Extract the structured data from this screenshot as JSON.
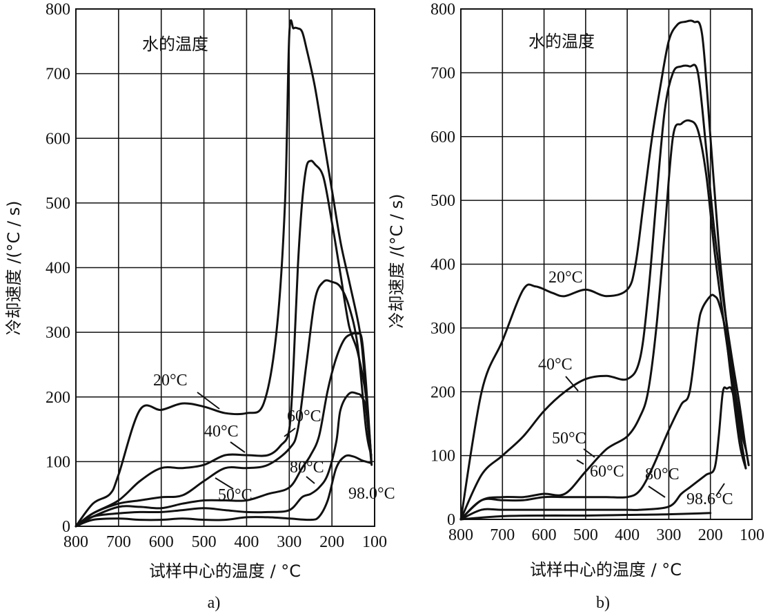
{
  "chart_data": [
    {
      "type": "line",
      "panel_label": "a)",
      "annotation": "水的温度",
      "xlabel": "试样中心的温度 / °C",
      "ylabel": "冷却速度 /(°C / s)",
      "xlim": [
        800,
        100
      ],
      "ylim": [
        0,
        800
      ],
      "xticks": [
        800,
        700,
        600,
        500,
        400,
        300,
        200,
        100
      ],
      "yticks": [
        0,
        100,
        200,
        300,
        400,
        500,
        600,
        700,
        800
      ],
      "series": [
        {
          "name": "20°C",
          "x": [
            800,
            760,
            720,
            700,
            650,
            600,
            550,
            500,
            450,
            400,
            360,
            330,
            310,
            300,
            290,
            280,
            270,
            260,
            240,
            220,
            200,
            180,
            160,
            140,
            130,
            120,
            112,
            107
          ],
          "y": [
            0,
            35,
            50,
            80,
            180,
            180,
            190,
            185,
            175,
            175,
            190,
            300,
            500,
            760,
            770,
            770,
            765,
            740,
            680,
            600,
            520,
            440,
            380,
            320,
            280,
            200,
            140,
            95
          ]
        },
        {
          "name": "40°C",
          "x": [
            800,
            760,
            700,
            650,
            600,
            550,
            500,
            450,
            400,
            350,
            320,
            300,
            290,
            280,
            270,
            260,
            250,
            240,
            220,
            200,
            180,
            160,
            140,
            120,
            108
          ],
          "y": [
            0,
            20,
            40,
            70,
            90,
            90,
            95,
            110,
            110,
            110,
            125,
            150,
            250,
            400,
            500,
            555,
            565,
            560,
            540,
            470,
            390,
            310,
            270,
            200,
            105
          ]
        },
        {
          "name": "50°C",
          "x": [
            800,
            760,
            700,
            650,
            600,
            550,
            500,
            450,
            400,
            350,
            300,
            280,
            260,
            240,
            220,
            200,
            180,
            160,
            140,
            120,
            108
          ],
          "y": [
            0,
            20,
            35,
            40,
            45,
            48,
            70,
            90,
            90,
            95,
            120,
            150,
            250,
            350,
            378,
            378,
            370,
            340,
            280,
            150,
            110
          ]
        },
        {
          "name": "60°C",
          "x": [
            800,
            760,
            700,
            650,
            600,
            550,
            500,
            450,
            400,
            350,
            300,
            270,
            250,
            230,
            210,
            190,
            170,
            150,
            140,
            130,
            120,
            108
          ],
          "y": [
            0,
            15,
            30,
            30,
            28,
            35,
            40,
            40,
            40,
            50,
            60,
            90,
            110,
            140,
            210,
            260,
            290,
            298,
            298,
            290,
            220,
            105
          ]
        },
        {
          "name": "80°C",
          "x": [
            800,
            760,
            700,
            650,
            600,
            550,
            500,
            450,
            400,
            350,
            300,
            270,
            250,
            230,
            210,
            190,
            180,
            160,
            140,
            130,
            120,
            108
          ],
          "y": [
            0,
            15,
            20,
            22,
            22,
            25,
            28,
            25,
            22,
            22,
            25,
            45,
            50,
            60,
            80,
            130,
            180,
            205,
            205,
            200,
            180,
            100
          ]
        },
        {
          "name": "98.0°C",
          "x": [
            800,
            760,
            700,
            650,
            600,
            550,
            500,
            450,
            400,
            350,
            300,
            250,
            230,
            210,
            190,
            170,
            150,
            130,
            120,
            110
          ],
          "y": [
            0,
            10,
            12,
            10,
            10,
            12,
            10,
            10,
            14,
            14,
            12,
            10,
            15,
            40,
            90,
            108,
            108,
            102,
            100,
            98
          ]
        }
      ],
      "labels": [
        "20°C",
        "40°C",
        "50°C",
        "60°C",
        "80°C",
        "98.0°C"
      ]
    },
    {
      "type": "line",
      "panel_label": "b)",
      "annotation": "水的温度",
      "xlabel": "试样中心的温度 / °C",
      "ylabel": "冷却速度 /(°C / s)",
      "xlim": [
        800,
        100
      ],
      "ylim": [
        0,
        800
      ],
      "xticks": [
        800,
        700,
        600,
        500,
        400,
        300,
        200,
        100
      ],
      "yticks": [
        0,
        100,
        200,
        300,
        400,
        500,
        600,
        700,
        800
      ],
      "series": [
        {
          "name": "20°C",
          "x": [
            800,
            750,
            700,
            650,
            620,
            580,
            550,
            500,
            450,
            400,
            380,
            360,
            340,
            320,
            300,
            280,
            260,
            240,
            220,
            200,
            180,
            160,
            140,
            120,
            108
          ],
          "y": [
            0,
            200,
            280,
            360,
            365,
            355,
            350,
            360,
            350,
            360,
            400,
            500,
            600,
            680,
            750,
            775,
            780,
            780,
            760,
            600,
            430,
            300,
            200,
            130,
            85
          ]
        },
        {
          "name": "40°C",
          "x": [
            800,
            750,
            700,
            650,
            600,
            550,
            500,
            450,
            400,
            370,
            350,
            330,
            310,
            290,
            270,
            250,
            230,
            210,
            190,
            170,
            150,
            130,
            115
          ],
          "y": [
            0,
            70,
            100,
            130,
            170,
            200,
            220,
            225,
            220,
            250,
            350,
            500,
            640,
            700,
            710,
            710,
            700,
            580,
            450,
            350,
            260,
            180,
            110
          ]
        },
        {
          "name": "50°C",
          "x": [
            800,
            750,
            700,
            650,
            600,
            550,
            500,
            450,
            400,
            370,
            350,
            330,
            310,
            290,
            270,
            250,
            230,
            210,
            190,
            170,
            150,
            130,
            115
          ],
          "y": [
            0,
            30,
            35,
            35,
            40,
            40,
            75,
            110,
            130,
            160,
            200,
            300,
            450,
            600,
            620,
            625,
            610,
            540,
            420,
            320,
            230,
            150,
            110
          ]
        },
        {
          "name": "60°C",
          "x": [
            800,
            750,
            700,
            650,
            600,
            550,
            500,
            450,
            400,
            370,
            340,
            300,
            270,
            250,
            230,
            220,
            200,
            190,
            180,
            165,
            150,
            130,
            115
          ],
          "y": [
            0,
            30,
            30,
            30,
            35,
            35,
            35,
            35,
            35,
            45,
            80,
            140,
            180,
            200,
            300,
            330,
            350,
            350,
            340,
            300,
            220,
            120,
            80
          ]
        },
        {
          "name": "80°C",
          "x": [
            800,
            750,
            700,
            600,
            500,
            400,
            370,
            300,
            270,
            250,
            230,
            210,
            190,
            180,
            170,
            160,
            150,
            140,
            130,
            115
          ],
          "y": [
            0,
            15,
            15,
            15,
            15,
            15,
            15,
            20,
            40,
            50,
            60,
            70,
            80,
            130,
            200,
            205,
            205,
            180,
            140,
            80
          ]
        },
        {
          "name": "98.6°C",
          "x": [
            800,
            700,
            600,
            500,
            400,
            300,
            200
          ],
          "y": [
            0,
            5,
            6,
            6,
            7,
            8,
            10
          ]
        }
      ],
      "labels": [
        "20°C",
        "40°C",
        "50°C",
        "60°C",
        "80°C",
        "98.6°C"
      ]
    }
  ]
}
